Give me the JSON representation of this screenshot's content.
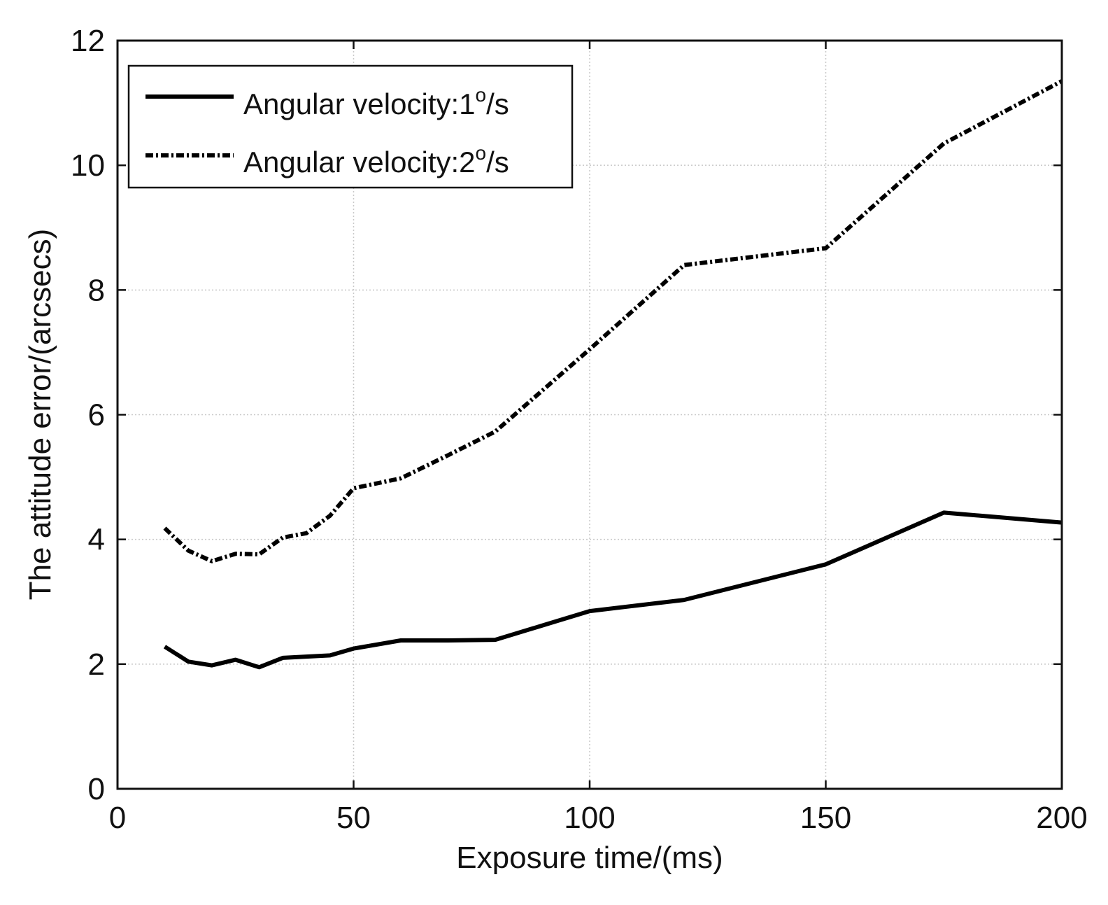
{
  "chart_data": {
    "type": "line",
    "title": "",
    "xlabel": "Exposure time/(ms)",
    "ylabel": "The attitude error/(arcsecs)",
    "xlim": [
      0,
      200
    ],
    "ylim": [
      0,
      12
    ],
    "xticks": [
      0,
      50,
      100,
      150,
      200
    ],
    "yticks": [
      0,
      2,
      4,
      6,
      8,
      10,
      12
    ],
    "grid": true,
    "legend_position": "top-left",
    "series": [
      {
        "name": "Angular velocity:1°/s",
        "label_prefix": "Angular velocity:1",
        "label_sup": "o",
        "label_suffix": "/s",
        "style": "solid",
        "color": "#000000",
        "x": [
          10,
          15,
          20,
          25,
          30,
          35,
          40,
          45,
          50,
          60,
          70,
          80,
          100,
          120,
          150,
          175,
          200
        ],
        "y": [
          2.28,
          2.04,
          1.98,
          2.07,
          1.95,
          2.1,
          2.12,
          2.14,
          2.25,
          2.38,
          2.38,
          2.39,
          2.85,
          3.03,
          3.6,
          4.43,
          4.27
        ]
      },
      {
        "name": "Angular velocity:2°/s",
        "label_prefix": "Angular velocity:2",
        "label_sup": "o",
        "label_suffix": "/s",
        "style": "dashdot",
        "color": "#000000",
        "x": [
          10,
          15,
          20,
          25,
          30,
          35,
          40,
          45,
          50,
          60,
          70,
          80,
          100,
          120,
          150,
          175,
          200
        ],
        "y": [
          4.18,
          3.82,
          3.65,
          3.77,
          3.76,
          4.03,
          4.1,
          4.38,
          4.82,
          4.98,
          5.35,
          5.73,
          7.05,
          8.4,
          8.67,
          10.35,
          11.35
        ]
      }
    ]
  }
}
